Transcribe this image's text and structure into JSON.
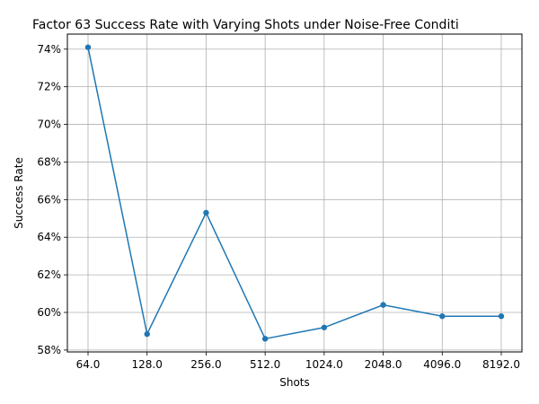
{
  "chart_data": {
    "type": "line",
    "title": "Factor 63 Success Rate with Varying Shots under Noise-Free Conditi",
    "xlabel": "Shots",
    "ylabel": "Success Rate",
    "categories": [
      "64.0",
      "128.0",
      "256.0",
      "512.0",
      "1024.0",
      "2048.0",
      "4096.0",
      "8192.0"
    ],
    "values": [
      74.1,
      58.85,
      65.3,
      58.6,
      59.2,
      60.4,
      59.8,
      59.8
    ],
    "y_ticks": [
      58,
      60,
      62,
      64,
      66,
      68,
      70,
      72,
      74
    ],
    "y_tick_format": "%",
    "ylim": [
      57.9,
      74.8
    ],
    "grid": true,
    "line_color": "#1f77b4",
    "marker": "circle"
  }
}
